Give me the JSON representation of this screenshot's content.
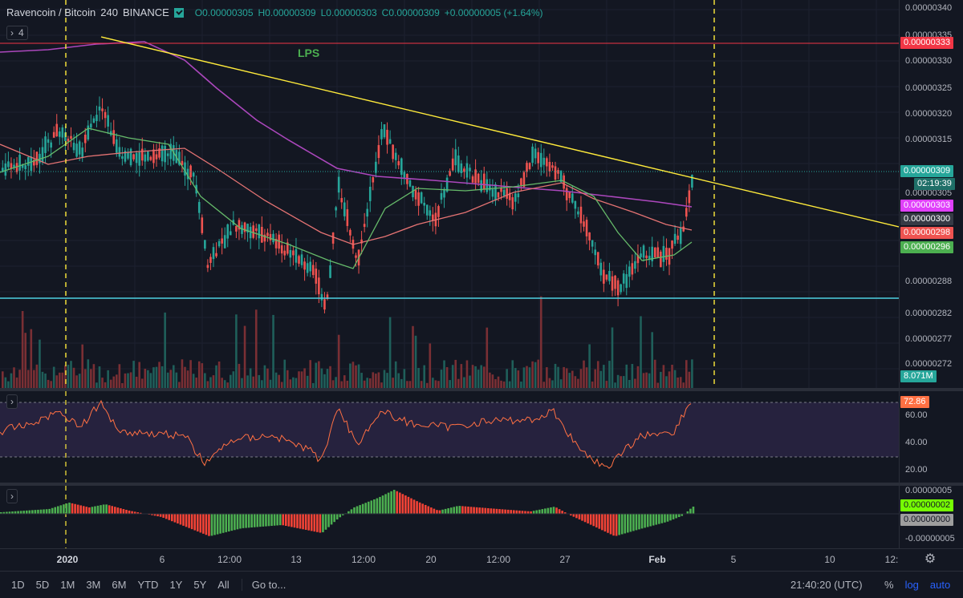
{
  "legend": {
    "symbol": "Ravencoin / Bitcoin",
    "interval": "240",
    "exchange": "BINANCE",
    "open": "O0.00000305",
    "high": "H0.00000309",
    "low": "L0.00000303",
    "close": "C0.00000309",
    "change": "+0.00000005 (+1.64%)"
  },
  "indicator_count": "4",
  "annotation": "LPS",
  "price_axis": {
    "ticks": [
      "0.00000340",
      "0.00000335",
      "0.00000330",
      "0.00000325",
      "0.00000320",
      "0.00000315",
      "0.00000305",
      "0.00000288",
      "0.00000282",
      "0.00000277",
      "0.00000272"
    ],
    "tags": [
      {
        "label": "0.00000333",
        "color": "#f23645"
      },
      {
        "label": "0.00000309",
        "color": "#26a69a"
      },
      {
        "label": "02:19:39",
        "color": "#26a69a"
      },
      {
        "label": "0.00000303",
        "color": "#e040fb"
      },
      {
        "label": "0.00000300",
        "color": "#363a45"
      },
      {
        "label": "0.00000298",
        "color": "#ef5350"
      },
      {
        "label": "0.00000296",
        "color": "#4caf50"
      },
      {
        "label": "8.071M",
        "color": "#26a69a"
      }
    ]
  },
  "rsi_axis": {
    "ticks": [
      "60.00",
      "40.00",
      "20.00"
    ],
    "tag": "72.86"
  },
  "ao_axis": {
    "ticks": [
      "0.00000005",
      "-0.00000005"
    ],
    "tags": [
      {
        "label": "0.00000002",
        "color": "#76ff03"
      },
      {
        "label": "0.00000000",
        "color": "#9e9e9e"
      }
    ]
  },
  "time_axis": [
    "2020",
    "6",
    "12:00",
    "13",
    "12:00",
    "20",
    "12:00",
    "27",
    "Feb",
    "5",
    "10",
    "12:"
  ],
  "bottom_bar": {
    "ranges": [
      "1D",
      "5D",
      "1M",
      "3M",
      "6M",
      "YTD",
      "1Y",
      "5Y",
      "All"
    ],
    "goto": "Go to...",
    "clock": "21:40:20 (UTC)",
    "percent": "%",
    "log": "log",
    "auto": "auto"
  },
  "colors": {
    "up": "#26a69a",
    "down": "#ef5350",
    "trendline": "#ffeb3b",
    "support": "#4dd0e1",
    "resistance": "#f23645",
    "ma_purple": "#ab47bc",
    "ma_red": "#e57373",
    "ma_green": "#66bb6a",
    "rsi_line": "#ff7043",
    "rsi_band": "#7e57c2"
  }
}
